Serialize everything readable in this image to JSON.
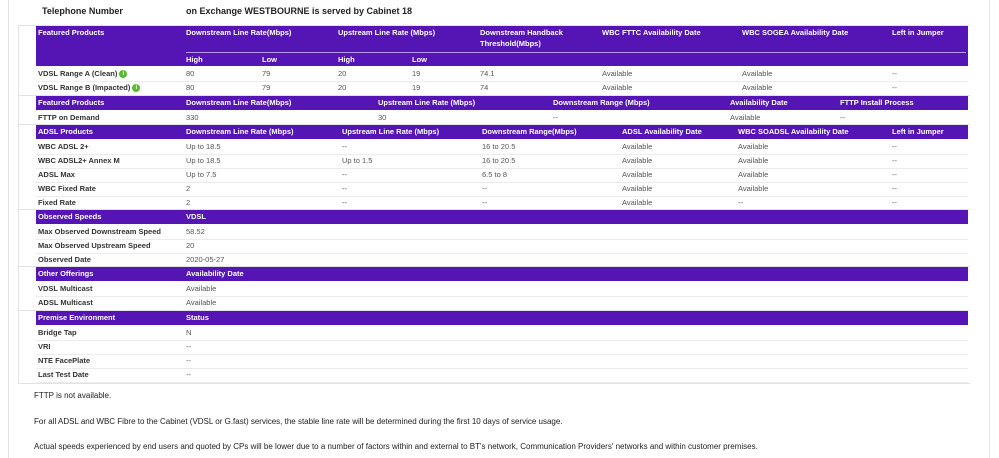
{
  "header": {
    "label": "Telephone Number",
    "exchange_text": "on Exchange WESTBOURNE is served by Cabinet 18"
  },
  "colors": {
    "header_bg": "#5514b4",
    "info_icon": "#5cb82e"
  },
  "featured": {
    "columns": [
      "Featured Products",
      "Downstream Line Rate(Mbps)",
      "Upstream Line Rate (Mbps)",
      "Downstream Handback",
      "WBC FTTC Availability Date",
      "WBC SOGEA Availability Date",
      "Left in Jumper"
    ],
    "column_line2": "Threshold(Mbps)",
    "subcolumns": [
      "High",
      "Low",
      "High",
      "Low"
    ],
    "rows": [
      {
        "name": "VDSL Range A (Clean)",
        "info_icon": "info-icon",
        "cells": [
          "80",
          "79",
          "20",
          "19",
          "74.1",
          "Available",
          "Available",
          "--"
        ]
      },
      {
        "name": "VDSL Range B (Impacted)",
        "info_icon": "info-icon",
        "cells": [
          "80",
          "79",
          "20",
          "19",
          "74",
          "Available",
          "Available",
          "--"
        ]
      }
    ]
  },
  "fttp": {
    "columns": [
      "Featured Products",
      "Downstream Line Rate(Mbps)",
      "Upstream Line Rate (Mbps)",
      "Downstream Range (Mbps)",
      "Availability Date",
      "FTTP Install Process"
    ],
    "rows": [
      {
        "name": "FTTP on Demand",
        "cells": [
          "330",
          "30",
          "--",
          "Available",
          "--"
        ]
      }
    ]
  },
  "adsl": {
    "columns": [
      "ADSL Products",
      "Downstream Line Rate (Mbps)",
      "Upstream Line Rate (Mbps)",
      "Downstream Range(Mbps)",
      "ADSL Availability Date",
      "WBC SOADSL Availability Date",
      "Left in Jumper"
    ],
    "rows": [
      {
        "name": "WBC ADSL 2+",
        "cells": [
          "Up to 18.5",
          "--",
          "16 to 20.5",
          "Available",
          "Available",
          "--"
        ]
      },
      {
        "name": "WBC ADSL2+ Annex M",
        "cells": [
          "Up to 18.5",
          "Up to 1.5",
          "16 to 20.5",
          "Available",
          "Available",
          "--"
        ]
      },
      {
        "name": "ADSL Max",
        "cells": [
          "Up to 7.5",
          "--",
          "6.5 to 8",
          "Available",
          "Available",
          "--"
        ]
      },
      {
        "name": "WBC Fixed Rate",
        "cells": [
          "2",
          "--",
          "--",
          "Available",
          "Available",
          "--"
        ]
      },
      {
        "name": "Fixed Rate",
        "cells": [
          "2",
          "--",
          "--",
          "Available",
          "--",
          "--"
        ]
      }
    ]
  },
  "observed": {
    "columns": [
      "Observed Speeds",
      "VDSL"
    ],
    "rows": [
      {
        "name": "Max Observed Downstream Speed",
        "cells": [
          "58.52"
        ]
      },
      {
        "name": "Max Observed Upstream Speed",
        "cells": [
          "20"
        ]
      },
      {
        "name": "Observed Date",
        "cells": [
          "2020-05-27"
        ]
      }
    ]
  },
  "other": {
    "columns": [
      "Other Offerings",
      "Availability Date"
    ],
    "rows": [
      {
        "name": "VDSL Multicast",
        "cells": [
          "Available"
        ]
      },
      {
        "name": "ADSL Multicast",
        "cells": [
          "Available"
        ]
      }
    ]
  },
  "premise": {
    "columns": [
      "Premise Environment",
      "Status"
    ],
    "rows": [
      {
        "name": "Bridge Tap",
        "cells": [
          "N"
        ]
      },
      {
        "name": "VRI",
        "cells": [
          "--"
        ]
      },
      {
        "name": "NTE FacePlate",
        "cells": [
          "--"
        ]
      },
      {
        "name": "Last Test Date",
        "cells": [
          "--"
        ]
      }
    ]
  },
  "notes": [
    "FTTP is not available.",
    "For all ADSL and WBC Fibre to the Cabinet (VDSL or G.fast) services, the stable line rate will be determined during the first 10 days of service usage.",
    "Actual speeds experienced by end users and quoted by CPs will be lower due to a number of factors within and external to BT's network, Communication Providers' networks and within customer premises."
  ]
}
